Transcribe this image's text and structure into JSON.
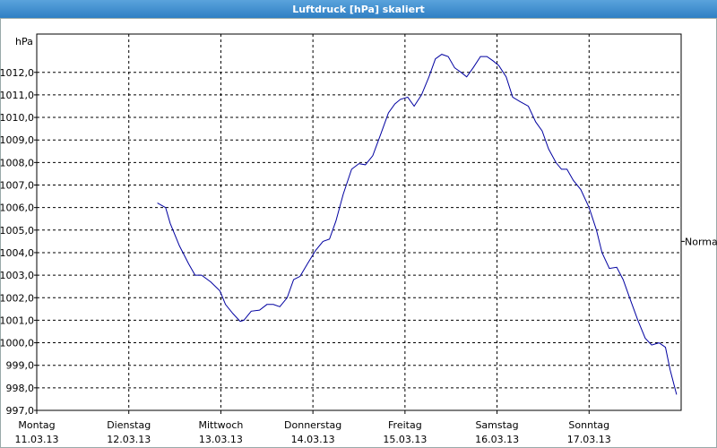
{
  "chart_data": {
    "type": "line",
    "title": "Luftdruck [hPa] skaliert",
    "y_unit": "hPa",
    "annotations": [
      {
        "text": "Normal",
        "y": 1004.5
      }
    ],
    "xlim": [
      0,
      7
    ],
    "ylim": [
      997,
      1013.7
    ],
    "grid": true,
    "xticks": [
      {
        "value": 0,
        "label": "Montag",
        "date": "11.03.13"
      },
      {
        "value": 1,
        "label": "Dienstag",
        "date": "12.03.13"
      },
      {
        "value": 2,
        "label": "Mittwoch",
        "date": "13.03.13"
      },
      {
        "value": 3,
        "label": "Donnerstag",
        "date": "14.03.13"
      },
      {
        "value": 4,
        "label": "Freitag",
        "date": "15.03.13"
      },
      {
        "value": 5,
        "label": "Samstag",
        "date": "16.03.13"
      },
      {
        "value": 6,
        "label": "Sonntag",
        "date": "17.03.13"
      }
    ],
    "yticks": [
      {
        "value": 997,
        "label": "997,0"
      },
      {
        "value": 998,
        "label": "998,0"
      },
      {
        "value": 999,
        "label": "999,0"
      },
      {
        "value": 1000,
        "label": "1000,0"
      },
      {
        "value": 1001,
        "label": "1001,0"
      },
      {
        "value": 1002,
        "label": "1002,0"
      },
      {
        "value": 1003,
        "label": "1003,0"
      },
      {
        "value": 1004,
        "label": "1004,0"
      },
      {
        "value": 1005,
        "label": "1005,0"
      },
      {
        "value": 1006,
        "label": "1006,0"
      },
      {
        "value": 1007,
        "label": "1007,0"
      },
      {
        "value": 1008,
        "label": "1008,0"
      },
      {
        "value": 1009,
        "label": "1009,0"
      },
      {
        "value": 1010,
        "label": "1010,0"
      },
      {
        "value": 1011,
        "label": "1011,0"
      },
      {
        "value": 1012,
        "label": "1012,0"
      }
    ],
    "x": [
      1.31,
      1.4,
      1.45,
      1.55,
      1.65,
      1.72,
      1.79,
      1.89,
      1.99,
      2.05,
      2.13,
      2.21,
      2.25,
      2.33,
      2.42,
      2.5,
      2.57,
      2.64,
      2.72,
      2.79,
      2.86,
      2.94,
      3.03,
      3.11,
      3.18,
      3.25,
      3.33,
      3.42,
      3.5,
      3.57,
      3.65,
      3.74,
      3.82,
      3.89,
      3.95,
      4.03,
      4.1,
      4.18,
      4.26,
      4.33,
      4.4,
      4.47,
      4.54,
      4.61,
      4.67,
      4.74,
      4.82,
      4.89,
      4.96,
      5.02,
      5.1,
      5.17,
      5.25,
      5.34,
      5.42,
      5.49,
      5.56,
      5.64,
      5.7,
      5.76,
      5.83,
      5.91,
      6.0,
      6.08,
      6.14,
      6.22,
      6.3,
      6.37,
      6.44,
      6.53,
      6.61,
      6.68,
      6.76,
      6.83,
      6.88,
      6.95
    ],
    "series": [
      {
        "color": "#0000a0",
        "values": [
          1006.2,
          1006.0,
          1005.3,
          1004.3,
          1003.5,
          1003.0,
          1003.0,
          1002.7,
          1002.3,
          1001.7,
          1001.3,
          1000.95,
          1001.0,
          1001.4,
          1001.45,
          1001.7,
          1001.7,
          1001.6,
          1002.0,
          1002.8,
          1002.95,
          1003.5,
          1004.1,
          1004.5,
          1004.6,
          1005.4,
          1006.6,
          1007.7,
          1007.95,
          1007.9,
          1008.3,
          1009.3,
          1010.2,
          1010.6,
          1010.8,
          1010.9,
          1010.5,
          1011.0,
          1011.8,
          1012.6,
          1012.8,
          1012.7,
          1012.2,
          1012.0,
          1011.8,
          1012.2,
          1012.7,
          1012.7,
          1012.5,
          1012.3,
          1011.8,
          1010.9,
          1010.7,
          1010.5,
          1009.8,
          1009.4,
          1008.6,
          1008.0,
          1007.7,
          1007.7,
          1007.2,
          1006.8,
          1006.0,
          1005.0,
          1004.0,
          1003.3,
          1003.35,
          1002.8,
          1002.0,
          1001.0,
          1000.2,
          999.9,
          1000.0,
          999.8,
          998.8,
          997.7
        ]
      }
    ]
  }
}
